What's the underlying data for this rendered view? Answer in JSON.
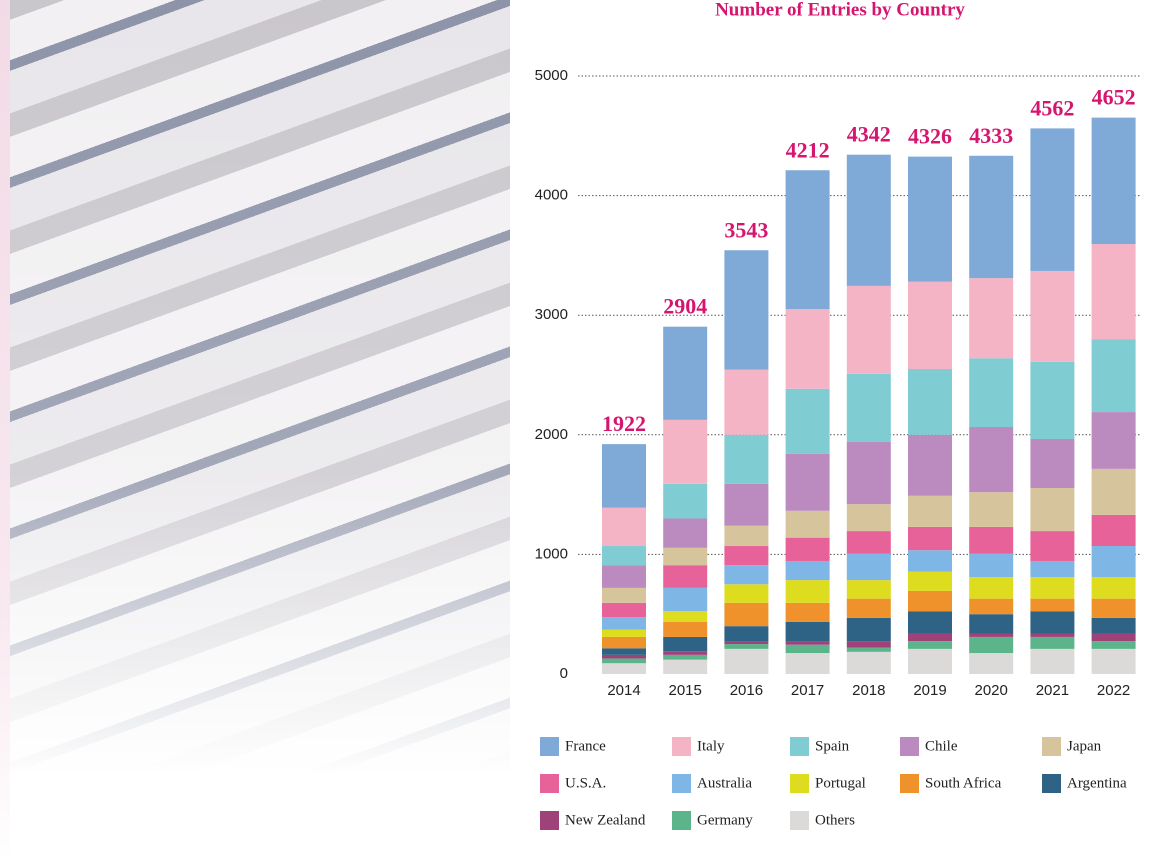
{
  "chart_data": {
    "type": "stacked-bar",
    "title": "Number of Entries by Country",
    "categories": [
      "2014",
      "2015",
      "2016",
      "2017",
      "2018",
      "2019",
      "2020",
      "2021",
      "2022"
    ],
    "totals": [
      1922,
      2904,
      3543,
      4212,
      4342,
      4326,
      4333,
      4562,
      4652
    ],
    "ylim": [
      0,
      5000
    ],
    "yticks": [
      0,
      1000,
      2000,
      3000,
      4000,
      5000
    ],
    "grid": true,
    "series": [
      {
        "name": "France",
        "color": "#7fa9d6",
        "values": [
          532,
          779,
          998,
          1162,
          1097,
          1046,
          1023,
          1192,
          1057
        ]
      },
      {
        "name": "Italy",
        "color": "#f4b4c6",
        "values": [
          320,
          535,
          545,
          665,
          735,
          730,
          670,
          760,
          795
        ]
      },
      {
        "name": "Spain",
        "color": "#7fcdd2",
        "values": [
          160,
          290,
          410,
          545,
          570,
          550,
          575,
          645,
          610
        ]
      },
      {
        "name": "Chile",
        "color": "#bb8abf",
        "values": [
          190,
          245,
          350,
          475,
          520,
          510,
          545,
          410,
          475
        ]
      },
      {
        "name": "Japan",
        "color": "#d6c59c",
        "values": [
          125,
          145,
          170,
          225,
          225,
          260,
          290,
          360,
          385
        ]
      },
      {
        "name": "U.S.A.",
        "color": "#e8629a",
        "values": [
          120,
          190,
          160,
          195,
          190,
          195,
          225,
          250,
          260
        ]
      },
      {
        "name": "Australia",
        "color": "#7eb6e6",
        "values": [
          105,
          195,
          160,
          160,
          220,
          180,
          195,
          135,
          260
        ]
      },
      {
        "name": "Portugal",
        "color": "#dedc1f",
        "values": [
          60,
          90,
          155,
          190,
          155,
          160,
          180,
          180,
          180
        ]
      },
      {
        "name": "South Africa",
        "color": "#f0922c",
        "values": [
          95,
          125,
          195,
          160,
          160,
          170,
          130,
          105,
          160
        ]
      },
      {
        "name": "Argentina",
        "color": "#2f6386",
        "values": [
          55,
          120,
          130,
          165,
          195,
          190,
          165,
          190,
          135
        ]
      },
      {
        "name": "New Zealand",
        "color": "#a0427a",
        "values": [
          30,
          30,
          20,
          25,
          55,
          60,
          25,
          25,
          60
        ]
      },
      {
        "name": "Germany",
        "color": "#5cb48a",
        "values": [
          40,
          40,
          40,
          70,
          35,
          65,
          135,
          100,
          65
        ]
      },
      {
        "name": "Others",
        "color": "#dcdad8",
        "values": [
          90,
          120,
          210,
          175,
          185,
          210,
          175,
          210,
          210
        ]
      }
    ]
  }
}
